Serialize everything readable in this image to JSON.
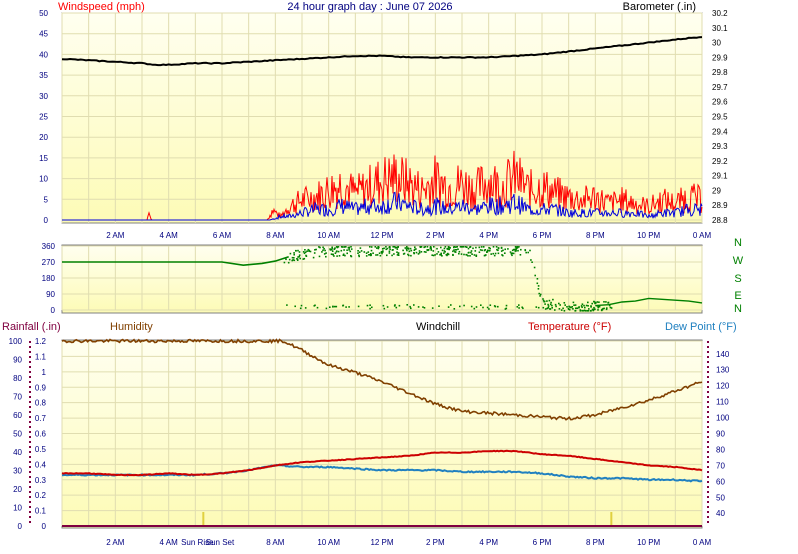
{
  "header": {
    "title": "24 hour graph day : June 07 2026",
    "left_label": "Windspeed (mph)",
    "right_label": "Barometer (.in)"
  },
  "colors": {
    "wind_speed": "#ff0000",
    "wind_gust": "#0000dd",
    "barometer": "#000000",
    "direction": "#008000",
    "humidity": "#804000",
    "temperature": "#cc0000",
    "dewpoint": "#2080c0",
    "rainfall": "#800040",
    "axis_text": "#000080",
    "baro_text": "#000000",
    "hum_text": "#804000",
    "windchill_text": "#000000",
    "temp_text": "#cc0000",
    "dew_text": "#2080c0",
    "rain_text": "#800040",
    "dir_text": "#008000",
    "sun_marker": "#e0d040"
  },
  "chart_data": [
    {
      "type": "line",
      "panel": "wind-barometer",
      "x_tick_labels": [
        "2 AM",
        "4 AM",
        "6 AM",
        "8 AM",
        "10 AM",
        "12 PM",
        "2 PM",
        "4 PM",
        "6 PM",
        "8 PM",
        "10 PM",
        "0 AM"
      ],
      "xlim": [
        0,
        24
      ],
      "ylabel": "Windspeed (mph)",
      "ylim": [
        0,
        50
      ],
      "y_ticks": [
        "0",
        "5",
        "10",
        "15",
        "20",
        "25",
        "30",
        "35",
        "40",
        "45",
        "50"
      ],
      "y2label": "Barometer (.in)",
      "y2lim": [
        28.8,
        30.2
      ],
      "y2_ticks": [
        "28.8",
        "28.9",
        "29",
        "29.1",
        "29.2",
        "29.3",
        "29.4",
        "29.5",
        "29.6",
        "29.7",
        "29.8",
        "29.9",
        "30",
        "30.1",
        "30.2"
      ],
      "series": [
        {
          "key": "barometer",
          "axis": "right",
          "x": [
            0,
            1,
            2,
            3,
            3.5,
            4,
            5,
            6,
            7,
            8,
            9,
            10,
            11,
            12,
            13,
            14,
            15,
            16,
            17,
            18,
            19,
            20,
            21,
            22,
            23,
            24
          ],
          "values": [
            29.89,
            29.88,
            29.87,
            29.86,
            29.85,
            29.85,
            29.86,
            29.86,
            29.87,
            29.88,
            29.89,
            29.9,
            29.91,
            29.91,
            29.9,
            29.9,
            29.9,
            29.9,
            29.91,
            29.92,
            29.94,
            29.96,
            29.98,
            30.0,
            30.02,
            30.04
          ]
        },
        {
          "key": "wind_speed",
          "axis": "left",
          "x": [
            0,
            3.2,
            3.25,
            3.35,
            7.7,
            7.9,
            8.2,
            8.5,
            9,
            9.5,
            10,
            10.5,
            11,
            11.5,
            12,
            12.5,
            13,
            13.5,
            14,
            14.5,
            15,
            15.5,
            16,
            16.5,
            17,
            17.5,
            18,
            18.5,
            19,
            19.5,
            20,
            20.5,
            21,
            21.5,
            22,
            22.5,
            23,
            23.5,
            24
          ],
          "values": [
            0,
            0,
            2,
            0,
            0,
            3,
            1,
            4,
            6,
            7,
            9,
            11,
            8,
            10,
            12,
            13,
            11,
            9,
            12,
            10,
            11,
            9,
            12,
            10,
            13,
            9,
            10,
            8,
            7,
            6,
            7,
            5,
            6,
            5,
            4,
            6,
            5,
            7,
            6
          ]
        },
        {
          "key": "wind_gust",
          "axis": "left",
          "x": [
            0,
            7.8,
            8.2,
            8.5,
            9,
            9.5,
            10,
            10.5,
            11,
            11.5,
            12,
            12.5,
            13,
            13.5,
            14,
            14.5,
            15,
            15.5,
            16,
            16.5,
            17,
            17.5,
            18,
            18.5,
            19,
            19.5,
            20,
            20.5,
            21,
            21.5,
            22,
            22.5,
            23,
            23.5,
            24
          ],
          "values": [
            0,
            0,
            1,
            1,
            2,
            3,
            3,
            4,
            3,
            4,
            4,
            5,
            4,
            3,
            4,
            3,
            4,
            3,
            4,
            4,
            5,
            3,
            3,
            3,
            2,
            2,
            2,
            2,
            2,
            2,
            1,
            2,
            2,
            3,
            3
          ]
        }
      ]
    },
    {
      "type": "scatter",
      "panel": "wind-direction",
      "ylim": [
        0,
        360
      ],
      "y_ticks": [
        "0",
        "90",
        "180",
        "270",
        "360"
      ],
      "compass_labels": [
        "N",
        "W",
        "S",
        "E",
        "N"
      ],
      "series": [
        {
          "key": "direction",
          "x": [
            0,
            1,
            2,
            3,
            4,
            5,
            6,
            6.8,
            7.5,
            8,
            8.5,
            9,
            9.5,
            10,
            10.5,
            11,
            11.5,
            12,
            12.5,
            13,
            13.5,
            14,
            14.5,
            15,
            15.5,
            16,
            16.5,
            17,
            17.5,
            18,
            18.5,
            19,
            19.5,
            20,
            20.5,
            21,
            21.5,
            22,
            22.5,
            23,
            23.5,
            24
          ],
          "values": [
            270,
            270,
            270,
            270,
            270,
            270,
            270,
            252,
            262,
            275,
            300,
            320,
            330,
            335,
            338,
            333,
            340,
            335,
            342,
            338,
            345,
            340,
            338,
            342,
            335,
            340,
            338,
            342,
            340,
            45,
            30,
            20,
            15,
            25,
            30,
            45,
            50,
            65,
            60,
            55,
            50,
            40
          ]
        }
      ]
    },
    {
      "type": "line",
      "panel": "temperature-humidity",
      "x_tick_labels": [
        "2 AM",
        "4 AM",
        "Sun Rise",
        "Sun Set",
        "8 AM",
        "10 AM",
        "12 PM",
        "2 PM",
        "4 PM",
        "6 PM",
        "8 PM",
        "10 PM",
        "0 AM"
      ],
      "xlim": [
        0,
        24
      ],
      "labels": {
        "rainfall": "Rainfall (.in)",
        "humidity": "Humidity",
        "windchill": "Windchill",
        "temperature": "Temperature (°F)",
        "dewpoint": "Dew Point (°F)"
      },
      "humidity_ticks": [
        "0",
        "10",
        "20",
        "30",
        "40",
        "50",
        "60",
        "70",
        "80",
        "90",
        "100"
      ],
      "rainfall_ticks": [
        "0",
        "0.1",
        "0.2",
        "0.3",
        "0.4",
        "0.5",
        "0.6",
        "0.7",
        "0.8",
        "0.9",
        "1",
        "1.1",
        "1.2"
      ],
      "temperature_ticks": [
        "40",
        "50",
        "60",
        "70",
        "80",
        "90",
        "100",
        "110",
        "120",
        "130",
        "140"
      ],
      "humidity_ylim": [
        0,
        100
      ],
      "temperature_ylim": [
        32,
        148
      ],
      "series": [
        {
          "key": "humidity",
          "axis": "humidity",
          "x": [
            0,
            2,
            4,
            6,
            8,
            8.3,
            9,
            10,
            11,
            12,
            13,
            14,
            15,
            16,
            17,
            18,
            19,
            20,
            21,
            22,
            23,
            24
          ],
          "values": [
            100,
            100,
            100,
            100,
            100,
            100,
            95,
            87,
            83,
            78,
            72,
            66,
            62,
            61,
            60,
            59,
            58,
            60,
            64,
            68,
            73,
            78
          ]
        },
        {
          "key": "temperature",
          "axis": "temperature",
          "x": [
            0,
            1,
            2,
            3,
            4,
            5,
            6,
            7,
            8,
            9,
            10,
            11,
            12,
            13,
            14,
            15,
            16,
            17,
            18,
            19,
            20,
            21,
            22,
            23,
            24
          ],
          "values": [
            65,
            65,
            64,
            64,
            65,
            64,
            65,
            67,
            70,
            72,
            73,
            74,
            75,
            76,
            78,
            78,
            79,
            79,
            77,
            76,
            74,
            72,
            70,
            69,
            67
          ]
        },
        {
          "key": "dewpoint",
          "axis": "temperature",
          "x": [
            0,
            1,
            2,
            3,
            4,
            5,
            6,
            7,
            8,
            9,
            10,
            11,
            12,
            13,
            14,
            15,
            16,
            17,
            18,
            19,
            20,
            21,
            22,
            23,
            24
          ],
          "values": [
            64,
            64,
            64,
            64,
            64,
            64,
            65,
            67,
            70,
            69,
            69,
            68,
            67,
            67,
            67,
            66,
            66,
            66,
            65,
            63,
            62,
            62,
            61,
            61,
            60
          ]
        },
        {
          "key": "rainfall",
          "axis": "rainfall",
          "x": [
            0,
            2.5,
            3.5,
            24
          ],
          "values": [
            0,
            0,
            0,
            0
          ]
        }
      ],
      "sun_events_hours": [
        5.3,
        20.6
      ]
    }
  ]
}
